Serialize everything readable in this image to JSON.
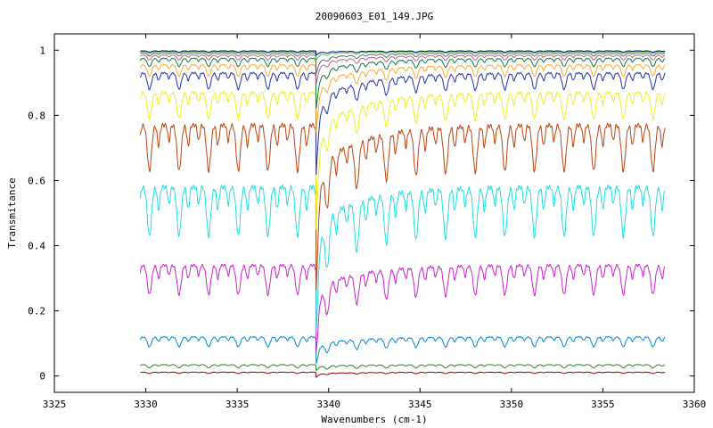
{
  "chart_data": {
    "type": "line",
    "title": "20090603_E01_149.JPG",
    "xlabel": "Wavenumbers (cm-1)",
    "ylabel": "Transmitance",
    "xlim": [
      3325,
      3360
    ],
    "ylim": [
      -0.05,
      1.05
    ],
    "xticks": [
      "3325",
      "3330",
      "3335",
      "3340",
      "3345",
      "3350",
      "3355",
      "3360"
    ],
    "yticks": [
      "0",
      "0.2",
      "0.4",
      "0.6",
      "0.8",
      "1"
    ],
    "grid": false,
    "x_start": 3329.7,
    "x_end": 3358.4,
    "line_center": 3339.3,
    "comb_start": 3330.2,
    "comb_spacing": 1.62,
    "series": [
      {
        "color": "#880000",
        "baseline": 0.012,
        "depth": 0.004,
        "step": 0.012
      },
      {
        "color": "#228822",
        "baseline": 0.035,
        "depth": 0.01,
        "step": 0.012
      },
      {
        "color": "#0088cc",
        "baseline": 0.12,
        "depth": 0.03,
        "step": 0.06
      },
      {
        "color": "#cc22cc",
        "baseline": 0.34,
        "depth": 0.09,
        "step": 0.2
      },
      {
        "color": "#22dddd",
        "baseline": 0.58,
        "depth": 0.15,
        "step": 0.33
      },
      {
        "color": "#bb4411",
        "baseline": 0.77,
        "depth": 0.14,
        "step": 0.38
      },
      {
        "color": "#eeee22",
        "baseline": 0.87,
        "depth": 0.08,
        "step": 0.32
      },
      {
        "color": "#2233aa",
        "baseline": 0.93,
        "depth": 0.05,
        "step": 0.24
      },
      {
        "color": "#ffaa22",
        "baseline": 0.955,
        "depth": 0.035,
        "step": 0.16
      },
      {
        "color": "#117744",
        "baseline": 0.975,
        "depth": 0.025,
        "step": 0.12
      },
      {
        "color": "#aa6688",
        "baseline": 0.985,
        "depth": 0.015,
        "step": 0.07
      },
      {
        "color": "#666666",
        "baseline": 0.992,
        "depth": 0.01,
        "step": 0.05
      },
      {
        "color": "#44cc44",
        "baseline": 0.996,
        "depth": 0.006,
        "step": 0.02
      },
      {
        "color": "#000088",
        "baseline": 0.998,
        "depth": 0.004,
        "step": 0.01
      }
    ]
  }
}
